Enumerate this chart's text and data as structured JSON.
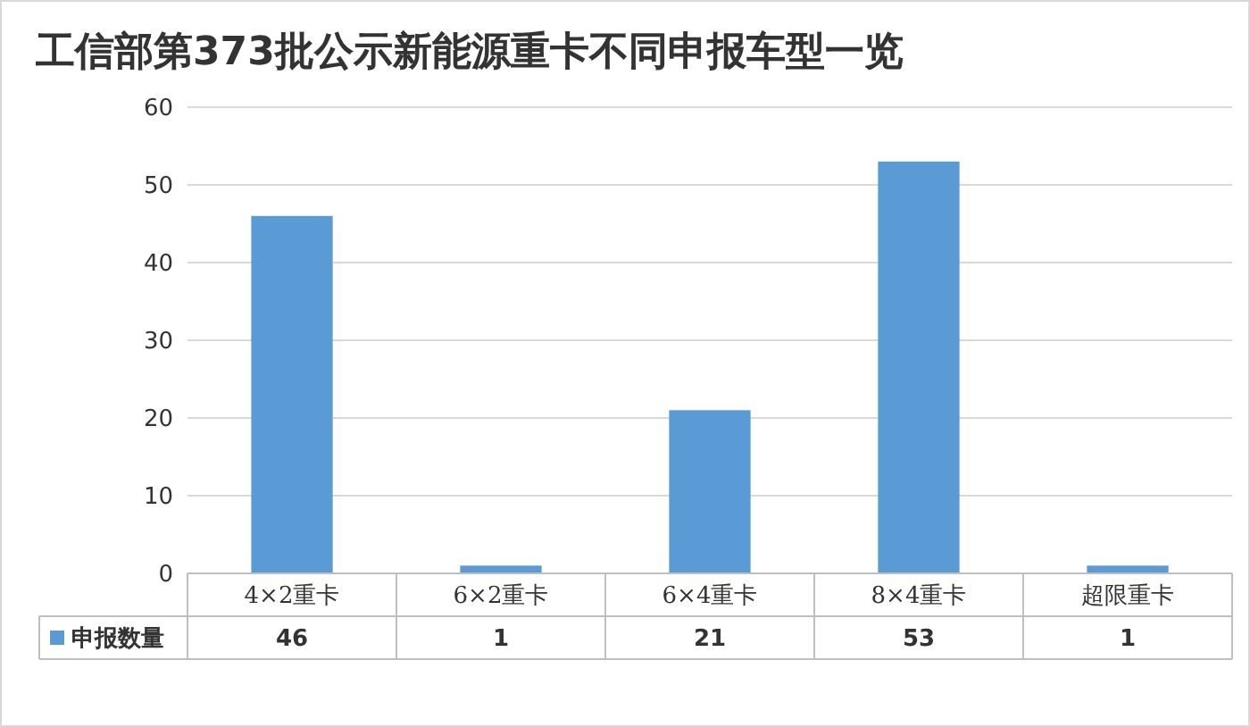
{
  "chart_data": {
    "type": "bar",
    "title": "工信部第373批公示新能源重卡不同申报车型一览",
    "categories": [
      "4×2重卡",
      "6×2重卡",
      "6×4重卡",
      "8×4重卡",
      "超限重卡"
    ],
    "series": [
      {
        "name": "申报数量",
        "color": "#5b9bd5",
        "values": [
          46,
          1,
          21,
          53,
          1
        ]
      }
    ],
    "ylim": [
      0,
      60
    ],
    "yticks": [
      0,
      10,
      20,
      30,
      40,
      50,
      60
    ],
    "grid": "y",
    "legend": "bottom",
    "data_labels": true
  }
}
